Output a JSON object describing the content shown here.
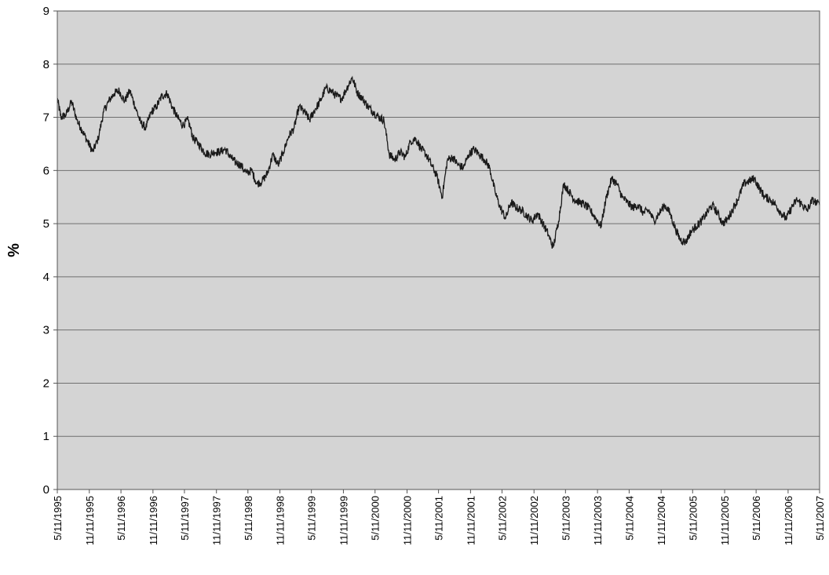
{
  "chart_data": {
    "type": "line",
    "title": "",
    "xlabel": "",
    "ylabel": "%",
    "ylim": [
      0,
      9
    ],
    "yticks": [
      0,
      1,
      2,
      3,
      4,
      5,
      6,
      7,
      8,
      9
    ],
    "grid": true,
    "legend": "none",
    "colors": {
      "plot_background": "#d4d4d4",
      "line": "#1a1a1a",
      "grid": "#6f6f6f"
    },
    "xticks": [
      "5/11/1995",
      "11/11/1995",
      "5/11/1996",
      "11/11/1996",
      "5/11/1997",
      "11/11/1997",
      "5/11/1998",
      "11/11/1998",
      "5/11/1999",
      "11/11/1999",
      "5/11/2000",
      "11/11/2000",
      "5/11/2001",
      "11/11/2001",
      "5/11/2002",
      "11/11/2002",
      "5/11/2003",
      "11/11/2003",
      "5/11/2004",
      "11/11/2004",
      "5/11/2005",
      "11/11/2005",
      "5/11/2006",
      "11/11/2006",
      "5/11/2007"
    ],
    "series": [
      {
        "name": "",
        "x": [
          "1995-05-11",
          "1995-06-01",
          "1995-07-01",
          "1995-08-01",
          "1995-09-01",
          "1995-10-01",
          "1995-11-01",
          "1995-12-01",
          "1996-01-01",
          "1996-02-01",
          "1996-03-01",
          "1996-04-01",
          "1996-05-01",
          "1996-06-01",
          "1996-07-01",
          "1996-08-01",
          "1996-09-01",
          "1996-10-01",
          "1996-11-01",
          "1996-12-01",
          "1997-01-01",
          "1997-02-01",
          "1997-03-01",
          "1997-04-01",
          "1997-05-01",
          "1997-06-01",
          "1997-07-01",
          "1997-08-01",
          "1997-09-01",
          "1997-10-01",
          "1997-11-01",
          "1997-12-01",
          "1998-01-01",
          "1998-02-01",
          "1998-03-01",
          "1998-04-01",
          "1998-05-01",
          "1998-06-01",
          "1998-07-01",
          "1998-08-01",
          "1998-09-01",
          "1998-10-01",
          "1998-11-01",
          "1998-12-01",
          "1999-01-01",
          "1999-02-01",
          "1999-03-01",
          "1999-04-01",
          "1999-05-01",
          "1999-06-01",
          "1999-07-01",
          "1999-08-01",
          "1999-09-01",
          "1999-10-01",
          "1999-11-01",
          "1999-12-01",
          "2000-01-01",
          "2000-02-01",
          "2000-03-01",
          "2000-04-01",
          "2000-05-01",
          "2000-06-01",
          "2000-07-01",
          "2000-08-01",
          "2000-09-01",
          "2000-10-01",
          "2000-11-01",
          "2000-12-01",
          "2001-01-01",
          "2001-02-01",
          "2001-03-01",
          "2001-04-01",
          "2001-05-01",
          "2001-06-01",
          "2001-07-01",
          "2001-08-01",
          "2001-09-01",
          "2001-10-01",
          "2001-11-01",
          "2001-12-01",
          "2002-01-01",
          "2002-02-01",
          "2002-03-01",
          "2002-04-01",
          "2002-05-01",
          "2002-06-01",
          "2002-07-01",
          "2002-08-01",
          "2002-09-01",
          "2002-10-01",
          "2002-11-01",
          "2002-12-01",
          "2003-01-01",
          "2003-02-01",
          "2003-03-01",
          "2003-04-01",
          "2003-05-01",
          "2003-06-01",
          "2003-07-01",
          "2003-08-01",
          "2003-09-01",
          "2003-10-01",
          "2003-11-01",
          "2003-12-01",
          "2004-01-01",
          "2004-02-01",
          "2004-03-01",
          "2004-04-01",
          "2004-05-01",
          "2004-06-01",
          "2004-07-01",
          "2004-08-01",
          "2004-09-01",
          "2004-10-01",
          "2004-11-01",
          "2004-12-01",
          "2005-01-01",
          "2005-02-01",
          "2005-03-01",
          "2005-04-01",
          "2005-05-01",
          "2005-06-01",
          "2005-07-01",
          "2005-08-01",
          "2005-09-01",
          "2005-10-01",
          "2005-11-01",
          "2005-12-01",
          "2006-01-01",
          "2006-02-01",
          "2006-03-01",
          "2006-04-01",
          "2006-05-01",
          "2006-06-01",
          "2006-07-01",
          "2006-08-01",
          "2006-09-01",
          "2006-10-01",
          "2006-11-01",
          "2006-12-01",
          "2007-01-01",
          "2007-02-01",
          "2007-03-01",
          "2007-04-01",
          "2007-05-11"
        ],
        "y": [
          7.35,
          7.0,
          7.05,
          7.3,
          6.95,
          6.75,
          6.55,
          6.35,
          6.6,
          7.1,
          7.3,
          7.45,
          7.5,
          7.3,
          7.5,
          7.2,
          6.9,
          6.8,
          7.1,
          7.2,
          7.4,
          7.45,
          7.2,
          7.0,
          6.85,
          6.95,
          6.6,
          6.5,
          6.35,
          6.3,
          6.35,
          6.35,
          6.4,
          6.25,
          6.15,
          6.1,
          5.95,
          6.0,
          5.75,
          5.8,
          5.95,
          6.3,
          6.1,
          6.35,
          6.65,
          6.8,
          7.2,
          7.1,
          6.95,
          7.15,
          7.3,
          7.55,
          7.5,
          7.4,
          7.35,
          7.55,
          7.75,
          7.45,
          7.35,
          7.2,
          7.1,
          7.0,
          6.95,
          6.3,
          6.2,
          6.35,
          6.25,
          6.55,
          6.6,
          6.4,
          6.3,
          6.1,
          5.9,
          5.5,
          6.2,
          6.25,
          6.1,
          6.05,
          6.3,
          6.4,
          6.3,
          6.2,
          6.05,
          5.6,
          5.3,
          5.1,
          5.4,
          5.3,
          5.25,
          5.15,
          5.05,
          5.2,
          5.0,
          4.8,
          4.55,
          5.05,
          5.75,
          5.6,
          5.45,
          5.4,
          5.35,
          5.25,
          5.1,
          4.95,
          5.5,
          5.85,
          5.75,
          5.5,
          5.4,
          5.3,
          5.35,
          5.2,
          5.25,
          5.05,
          5.2,
          5.35,
          5.2,
          4.9,
          4.7,
          4.65,
          4.85,
          4.95,
          5.05,
          5.2,
          5.35,
          5.2,
          5.0,
          5.1,
          5.3,
          5.5,
          5.75,
          5.8,
          5.85,
          5.65,
          5.5,
          5.45,
          5.35,
          5.2,
          5.1,
          5.3,
          5.45,
          5.35,
          5.25,
          5.45,
          5.35
        ]
      }
    ]
  }
}
